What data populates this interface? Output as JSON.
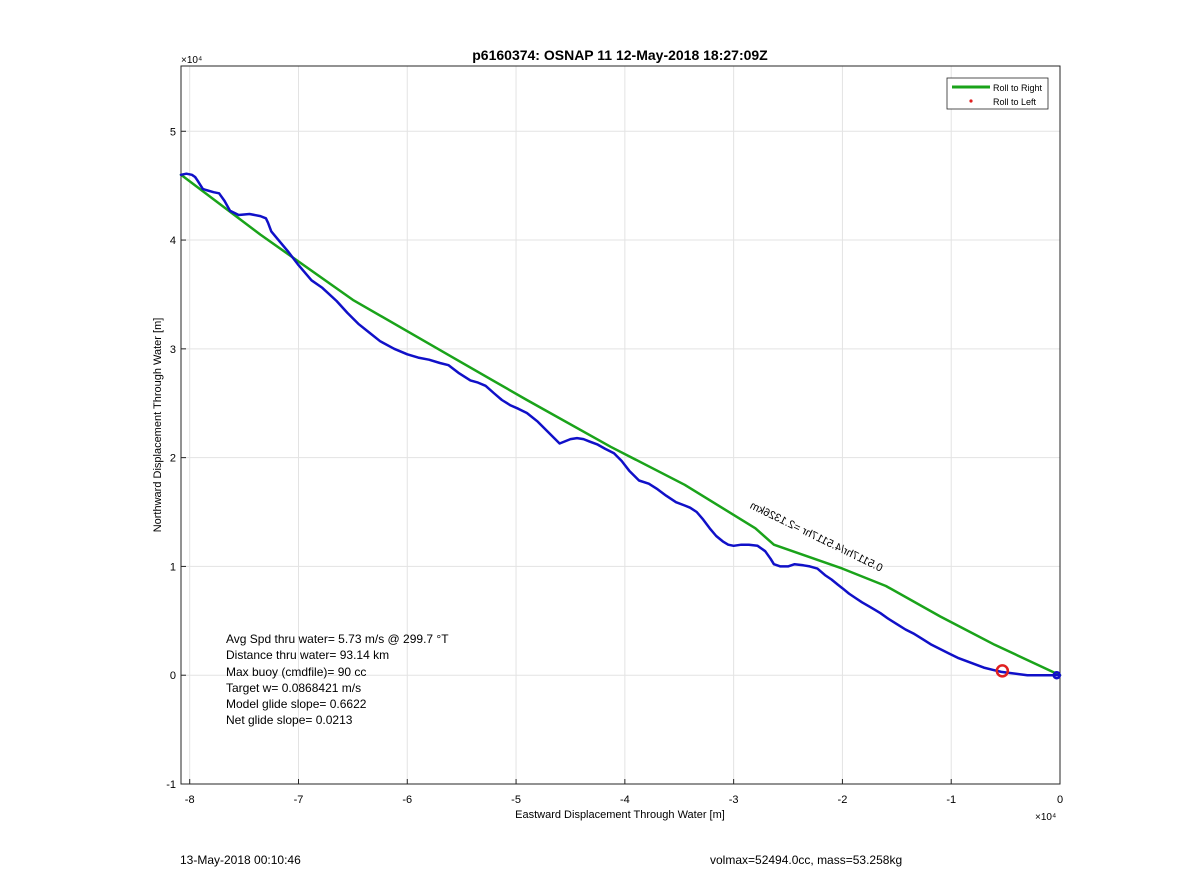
{
  "chart_data": {
    "type": "line",
    "title": "p6160374: OSNAP 11 12-May-2018 18:27:09Z",
    "xlabel": "Eastward Displacement Through Water [m]",
    "ylabel": "Northward Displacement Through Water [m]",
    "x_exponent_label": "×10⁴",
    "y_exponent_label": "×10⁴",
    "xlim": [
      -80800,
      0
    ],
    "ylim": [
      -10000,
      56000
    ],
    "x_ticks": [
      -80000,
      -70000,
      -60000,
      -50000,
      -40000,
      -30000,
      -20000,
      -10000,
      0
    ],
    "x_tick_labels": [
      "-8",
      "-7",
      "-6",
      "-5",
      "-4",
      "-3",
      "-2",
      "-1",
      "0"
    ],
    "y_ticks": [
      -10000,
      0,
      10000,
      20000,
      30000,
      40000,
      50000
    ],
    "y_tick_labels": [
      "-1",
      "0",
      "1",
      "2",
      "3",
      "4",
      "5"
    ],
    "grid": true,
    "legend_position": "top-right",
    "legend": [
      {
        "label": "Roll to Right",
        "color": "#1aa31a",
        "marker": "line"
      },
      {
        "label": "Roll to Left",
        "color": "#e02020",
        "marker": "dot"
      }
    ],
    "series": [
      {
        "name": "Roll to Right",
        "color": "#1aa31a",
        "x": [
          -80800,
          -73500,
          -65000,
          -55800,
          -49000,
          -41300,
          -34500,
          -28000,
          -26300,
          -20000,
          -16000,
          -11000,
          -6000,
          0
        ],
        "y": [
          46000,
          40500,
          34500,
          29200,
          25300,
          21000,
          17500,
          13500,
          12000,
          9800,
          8200,
          5400,
          2800,
          0
        ]
      },
      {
        "color": "#1010c8",
        "x": [
          -80800,
          -80300,
          -79800,
          -79500,
          -79300,
          -78800,
          -78500,
          -77800,
          -77300,
          -76800,
          -76300,
          -75500,
          -74500,
          -73500,
          -73000,
          -72800,
          -72500,
          -72000,
          -71000,
          -70000,
          -68800,
          -67800,
          -66500,
          -65500,
          -64500,
          -63500,
          -62500,
          -61200,
          -60000,
          -59000,
          -58000,
          -57000,
          -56200,
          -55300,
          -54200,
          -53500,
          -52800,
          -52000,
          -51300,
          -50500,
          -49800,
          -49000,
          -48000,
          -47000,
          -46000,
          -45000,
          -44400,
          -43800,
          -43300,
          -42500,
          -41800,
          -41000,
          -40300,
          -39600,
          -38700,
          -37800,
          -37000,
          -36200,
          -35300,
          -34500,
          -34000,
          -33400,
          -32800,
          -32200,
          -31600,
          -31000,
          -30500,
          -30000,
          -29300,
          -28600,
          -27800,
          -27100,
          -26600,
          -26300,
          -25700,
          -25000,
          -24400,
          -23600,
          -23000,
          -22300,
          -21600,
          -21000,
          -20400,
          -20000,
          -19400,
          -18800,
          -18200,
          -17500,
          -17000,
          -16500,
          -15800,
          -15000,
          -14200,
          -13400,
          -12600,
          -11800,
          -11000,
          -10200,
          -9400,
          -8600,
          -7800,
          -7000,
          -6200,
          -5400,
          -4600,
          -3800,
          -3000,
          -2200,
          -1400,
          -600,
          0
        ],
        "y": [
          46000,
          46100,
          46000,
          45800,
          45500,
          44700,
          44600,
          44400,
          44300,
          43600,
          42700,
          42300,
          42400,
          42200,
          42000,
          41600,
          40800,
          40200,
          39000,
          37700,
          36300,
          35600,
          34400,
          33300,
          32300,
          31500,
          30700,
          30000,
          29500,
          29200,
          29000,
          28700,
          28500,
          27800,
          27100,
          26900,
          26600,
          25900,
          25300,
          24800,
          24500,
          24100,
          23300,
          22300,
          21300,
          21700,
          21800,
          21700,
          21500,
          21200,
          20800,
          20400,
          19700,
          18800,
          17900,
          17600,
          17100,
          16500,
          15900,
          15600,
          15400,
          15000,
          14300,
          13500,
          12800,
          12300,
          12000,
          11900,
          12000,
          12000,
          11900,
          11400,
          10700,
          10200,
          10000,
          10000,
          10200,
          10100,
          10000,
          9800,
          9200,
          8800,
          8300,
          8000,
          7500,
          7100,
          6700,
          6300,
          6000,
          5700,
          5200,
          4700,
          4200,
          3800,
          3300,
          2800,
          2400,
          2000,
          1600,
          1300,
          1000,
          700,
          500,
          300,
          200,
          100,
          0,
          0,
          0,
          0,
          0
        ]
      }
    ],
    "markers": [
      {
        "type": "circle",
        "x": -5300,
        "y": 400,
        "color": "#e02020"
      },
      {
        "type": "circle",
        "x": -300,
        "y": 0,
        "color": "#1010c8"
      }
    ],
    "annotation": {
      "text": "0.5117hr/4.5117hr =2.1326km",
      "x": -16500,
      "y": 9500,
      "rotation_deg": 26
    }
  },
  "stats": {
    "avg_spd": "Avg Spd thru water=  5.73 m/s @ 299.7 °T",
    "distance": "Distance thru water= 93.14 km",
    "max_buoy": "Max buoy (cmdfile)= 90 cc",
    "target_w": "Target w= 0.0868421 m/s",
    "model_glide": "Model glide slope= 0.6622",
    "net_glide": "Net glide slope= 0.0213"
  },
  "footer": {
    "date": "13-May-2018 00:10:46",
    "volmax_mass": "volmax=52494.0cc, mass=53.258kg"
  }
}
